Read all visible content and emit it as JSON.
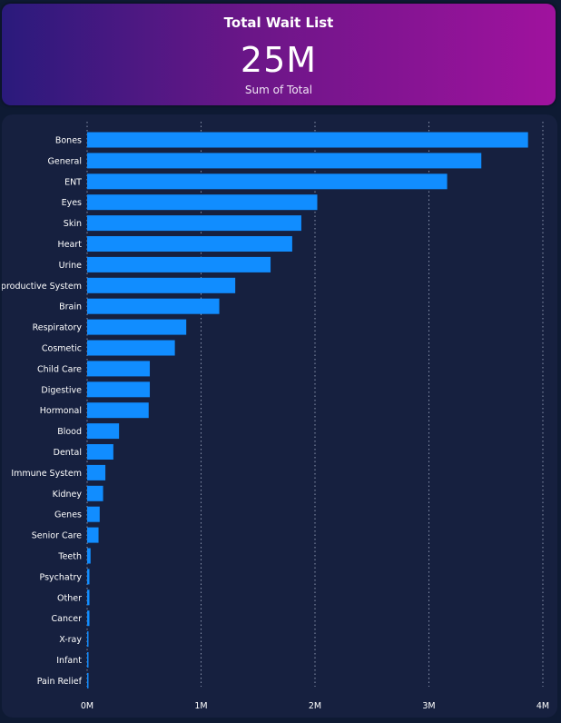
{
  "kpi": {
    "title": "Total Wait List",
    "value": "25M",
    "label": "Sum of Total"
  },
  "chart_data": {
    "type": "bar",
    "orientation": "horizontal",
    "categories": [
      "Bones",
      "General",
      "ENT",
      "Eyes",
      "Skin",
      "Heart",
      "Urine",
      "Reproductive System",
      "Brain",
      "Respiratory",
      "Cosmetic",
      "Child Care",
      "Digestive",
      "Hormonal",
      "Blood",
      "Dental",
      "Immune System",
      "Kidney",
      "Genes",
      "Senior Care",
      "Teeth",
      "Psychatry",
      "Other",
      "Cancer",
      "X-ray",
      "Infant",
      "Pain Relief"
    ],
    "values": [
      3870000,
      3460000,
      3160000,
      2020000,
      1880000,
      1800000,
      1610000,
      1300000,
      1160000,
      870000,
      770000,
      550000,
      550000,
      540000,
      280000,
      230000,
      160000,
      140000,
      110000,
      100000,
      30000,
      20000,
      20000,
      20000,
      5000,
      3000,
      2000
    ],
    "xlim": [
      0,
      4000000
    ],
    "x_ticks": [
      {
        "value": 0,
        "label": "0M"
      },
      {
        "value": 1000000,
        "label": "1M"
      },
      {
        "value": 2000000,
        "label": "2M"
      },
      {
        "value": 3000000,
        "label": "3M"
      },
      {
        "value": 4000000,
        "label": "4M"
      }
    ],
    "grid": true,
    "bar_color": "#118dff",
    "grid_color": "#8a94ad"
  }
}
